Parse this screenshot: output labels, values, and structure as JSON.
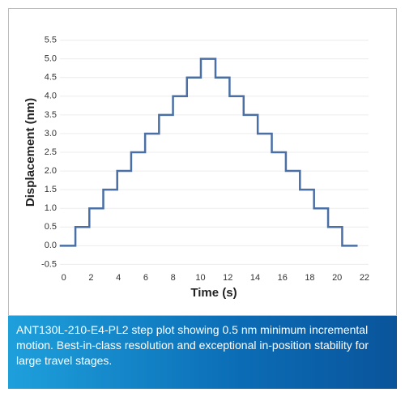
{
  "chart_data": {
    "type": "line",
    "x_label": "Time (s)",
    "y_label": "Displacement (nm)",
    "series": [
      {
        "color": "#4a6fa5",
        "x": [
          -0.3,
          0.85,
          0.85,
          1.87,
          1.87,
          2.89,
          2.89,
          3.91,
          3.91,
          4.93,
          4.93,
          5.95,
          5.95,
          6.97,
          6.97,
          7.99,
          7.99,
          9.01,
          9.01,
          10.03,
          10.03,
          11.1,
          11.1,
          12.13,
          12.13,
          13.16,
          13.16,
          14.19,
          14.19,
          15.22,
          15.22,
          16.25,
          16.25,
          17.28,
          17.28,
          18.31,
          18.31,
          19.34,
          19.34,
          20.37,
          20.37,
          21.5
        ],
        "values": [
          0,
          0,
          0.5,
          0.5,
          1,
          1,
          1.5,
          1.5,
          2,
          2,
          2.5,
          2.5,
          3,
          3,
          3.5,
          3.5,
          4,
          4,
          4.5,
          4.5,
          5,
          5,
          4.5,
          4.5,
          4,
          4,
          3.5,
          3.5,
          3,
          3,
          2.5,
          2.5,
          2,
          2,
          1.5,
          1.5,
          1,
          1,
          0.5,
          0.5,
          0,
          0
        ]
      }
    ],
    "xlim": [
      -0.4,
      22.3
    ],
    "xticks": [
      0,
      2,
      4,
      6,
      8,
      10,
      12,
      14,
      16,
      18,
      20,
      22
    ],
    "ylim": [
      -0.6,
      5.6
    ],
    "yticks": [
      -0.5,
      {
        "value": 0,
        "label": "0.0"
      },
      0.5,
      {
        "value": 1,
        "label": "1.0"
      },
      1.5,
      {
        "value": 2,
        "label": "2.0"
      },
      2.5,
      {
        "value": 3,
        "label": "3.0"
      },
      3.5,
      {
        "value": 4,
        "label": "4.0"
      },
      4.5,
      {
        "value": 5,
        "label": "5.0"
      },
      5.5
    ],
    "grid": true
  },
  "caption": "ANT130L-210-E4-PL2 step plot showing 0.5 nm minimum incremental motion. Best-in-class resolution and exceptional in-position stability for large travel stages."
}
